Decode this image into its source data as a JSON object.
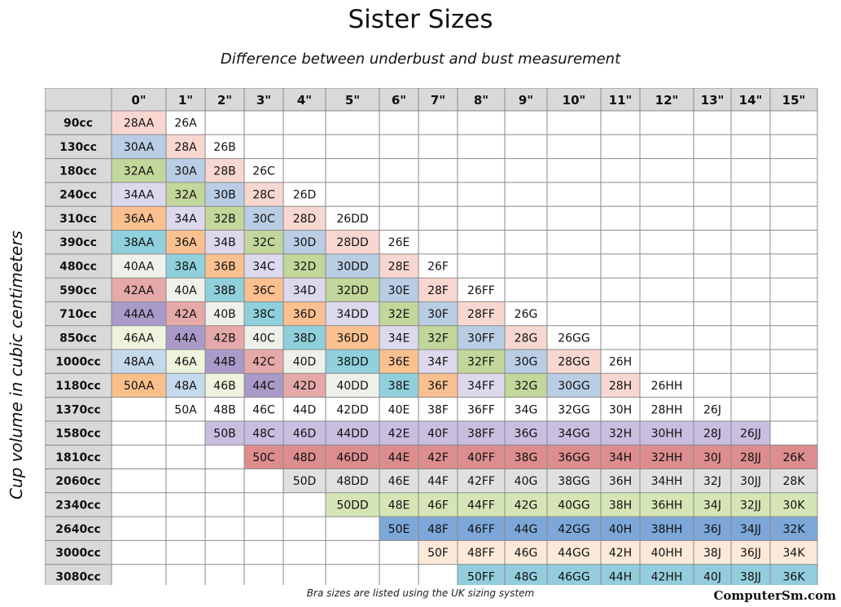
{
  "title": "Sister Sizes",
  "subtitle": "Difference between underbust and bust measurement",
  "footnote": "Bra sizes are listed using the UK sizing system",
  "credit": "ComputerSm.com",
  "chart_data": {
    "type": "table",
    "title": "Sister Sizes",
    "subtitle": "Difference between underbust and bust measurement",
    "xlabel": "Difference between underbust and bust measurement",
    "ylabel": "Cup volume in cubic centimeters",
    "columns": [
      "0\"",
      "1\"",
      "2\"",
      "3\"",
      "4\"",
      "5\"",
      "6\"",
      "7\"",
      "8\"",
      "9\"",
      "10\"",
      "11\"",
      "12\"",
      "13\"",
      "14\"",
      "15\""
    ],
    "rows": [
      {
        "volume": "90cc",
        "start": 0,
        "sizes": [
          "28AA",
          "26A"
        ]
      },
      {
        "volume": "130cc",
        "start": 0,
        "sizes": [
          "30AA",
          "28A",
          "26B"
        ]
      },
      {
        "volume": "180cc",
        "start": 0,
        "sizes": [
          "32AA",
          "30A",
          "28B",
          "26C"
        ]
      },
      {
        "volume": "240cc",
        "start": 0,
        "sizes": [
          "34AA",
          "32A",
          "30B",
          "28C",
          "26D"
        ]
      },
      {
        "volume": "310cc",
        "start": 0,
        "sizes": [
          "36AA",
          "34A",
          "32B",
          "30C",
          "28D",
          "26DD"
        ]
      },
      {
        "volume": "390cc",
        "start": 0,
        "sizes": [
          "38AA",
          "36A",
          "34B",
          "32C",
          "30D",
          "28DD",
          "26E"
        ]
      },
      {
        "volume": "480cc",
        "start": 0,
        "sizes": [
          "40AA",
          "38A",
          "36B",
          "34C",
          "32D",
          "30DD",
          "28E",
          "26F"
        ]
      },
      {
        "volume": "590cc",
        "start": 0,
        "sizes": [
          "42AA",
          "40A",
          "38B",
          "36C",
          "34D",
          "32DD",
          "30E",
          "28F",
          "26FF"
        ]
      },
      {
        "volume": "710cc",
        "start": 0,
        "sizes": [
          "44AA",
          "42A",
          "40B",
          "38C",
          "36D",
          "34DD",
          "32E",
          "30F",
          "28FF",
          "26G"
        ]
      },
      {
        "volume": "850cc",
        "start": 0,
        "sizes": [
          "46AA",
          "44A",
          "42B",
          "40C",
          "38D",
          "36DD",
          "34E",
          "32F",
          "30FF",
          "28G",
          "26GG"
        ]
      },
      {
        "volume": "1000cc",
        "start": 0,
        "sizes": [
          "48AA",
          "46A",
          "44B",
          "42C",
          "40D",
          "38DD",
          "36E",
          "34F",
          "32FF",
          "30G",
          "28GG",
          "26H"
        ]
      },
      {
        "volume": "1180cc",
        "start": 0,
        "sizes": [
          "50AA",
          "48A",
          "46B",
          "44C",
          "42D",
          "40DD",
          "38E",
          "36F",
          "34FF",
          "32G",
          "30GG",
          "28H",
          "26HH"
        ]
      },
      {
        "volume": "1370cc",
        "start": 1,
        "sizes": [
          "50A",
          "48B",
          "46C",
          "44D",
          "42DD",
          "40E",
          "38F",
          "36FF",
          "34G",
          "32GG",
          "30H",
          "28HH",
          "26J"
        ]
      },
      {
        "volume": "1580cc",
        "start": 2,
        "sizes": [
          "50B",
          "48C",
          "46D",
          "44DD",
          "42E",
          "40F",
          "38FF",
          "36G",
          "34GG",
          "32H",
          "30HH",
          "28J",
          "26JJ"
        ]
      },
      {
        "volume": "1810cc",
        "start": 3,
        "sizes": [
          "50C",
          "48D",
          "46DD",
          "44E",
          "42F",
          "40FF",
          "38G",
          "36GG",
          "34H",
          "32HH",
          "30J",
          "28JJ",
          "26K"
        ]
      },
      {
        "volume": "2060cc",
        "start": 4,
        "sizes": [
          "50D",
          "48DD",
          "46E",
          "44F",
          "42FF",
          "40G",
          "38GG",
          "36H",
          "34HH",
          "32J",
          "30JJ",
          "28K"
        ]
      },
      {
        "volume": "2340cc",
        "start": 5,
        "sizes": [
          "50DD",
          "48E",
          "46F",
          "44FF",
          "42G",
          "40GG",
          "38H",
          "36HH",
          "34J",
          "32JJ",
          "30K"
        ]
      },
      {
        "volume": "2640cc",
        "start": 6,
        "sizes": [
          "50E",
          "48F",
          "46FF",
          "44G",
          "42GG",
          "40H",
          "38HH",
          "36J",
          "34JJ",
          "32K"
        ]
      },
      {
        "volume": "3000cc",
        "start": 7,
        "sizes": [
          "50F",
          "48FF",
          "46G",
          "44GG",
          "42H",
          "40HH",
          "38J",
          "36JJ",
          "34K"
        ]
      },
      {
        "volume": "3080cc",
        "start": 8,
        "sizes": [
          "50FF",
          "48G",
          "46GG",
          "44H",
          "42HH",
          "40J",
          "38JJ",
          "36K"
        ]
      }
    ],
    "colors": {
      "header": "#d9d9d9",
      "grid": "#8a8a8a",
      "band_by_band_size": {
        "28": "#f8d7d1",
        "30": "#b9cde4",
        "32": "#c3d69b",
        "34": "#ddd9ec",
        "36": "#fac090",
        "38": "#8fd0dc",
        "40": "#eef0ea",
        "42": "#e6a9a9",
        "44": "#a99bc9",
        "46": "#eef3dd",
        "48": "#c5d9ec",
        "50": "#fbbf8c"
      },
      "lower_bands": {
        "26_after_1180": "#ffffff",
        "1370": "#ffffff",
        "1580": "#c9bde0",
        "1810": "#dd8d8d",
        "2060": "#e0e0e0",
        "2340": "#d6e5b6",
        "2640": "#7da7d8",
        "3000": "#fde9d9",
        "3080": "#93cddd"
      }
    }
  }
}
